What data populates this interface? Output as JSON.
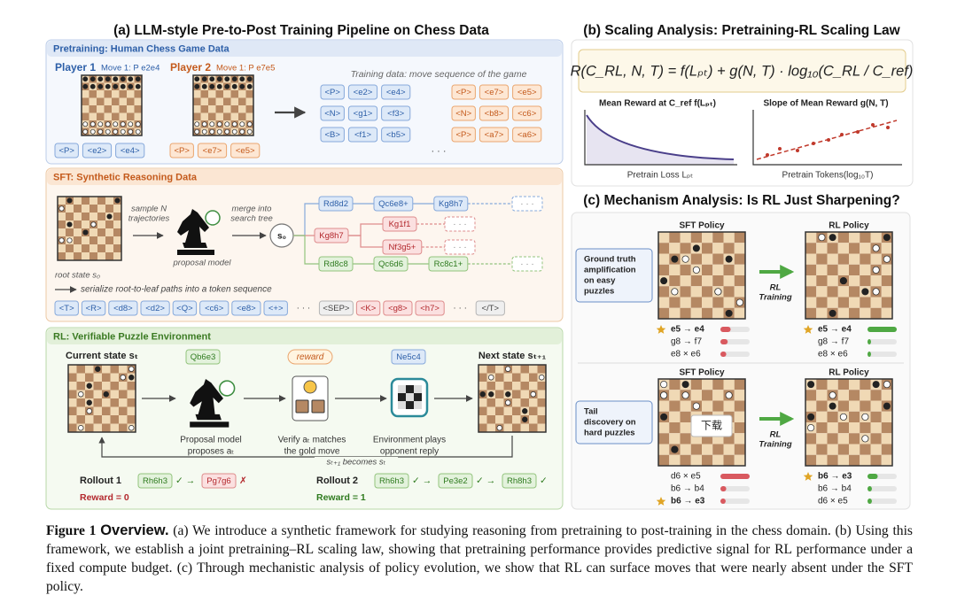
{
  "panel_a": {
    "title": "(a) LLM-style Pre-to-Post Training Pipeline on Chess Data",
    "pretraining": {
      "title": "Pretraining: Human Chess Game Data",
      "player1": "Player 1",
      "player1_move": "Move 1: P e2e4",
      "player2": "Player 2",
      "player2_move": "Move 1: P e7e5",
      "player1_tokens": [
        "<P>",
        "<e2>",
        "<e4>"
      ],
      "player2_tokens": [
        "<P>",
        "<e7>",
        "<e5>"
      ],
      "data_caption": "Training data: move sequence of the game",
      "token_rows": [
        [
          "<P>",
          "<e2>",
          "<e4>",
          "<P>",
          "<e7>",
          "<e5>"
        ],
        [
          "<N>",
          "<g1>",
          "<f3>",
          "<N>",
          "<b8>",
          "<c6>"
        ],
        [
          "<B>",
          "<f1>",
          "<b5>",
          "<P>",
          "<a7>",
          "<a6>"
        ]
      ],
      "ellipsis": "· · ·"
    },
    "sft": {
      "title": "SFT: Synthetic Reasoning Data",
      "sample": [
        "sample N",
        "trajectories"
      ],
      "merge": [
        "merge into",
        "search tree"
      ],
      "proposal": "proposal model",
      "root_state": "root state s₀",
      "root_node": "s₀",
      "tree": {
        "top": [
          "Rd8d2",
          "Qc6e8+",
          "Kg8h7"
        ],
        "middle": {
          "move": "Kg8h7",
          "children": [
            "Kg1f1",
            "Nf3g5+"
          ]
        },
        "bottom": [
          "Rd8c8",
          "Qc6d6",
          "Rc8c1+"
        ],
        "ellipsis": "· · ·"
      },
      "serialize": "serialize root-to-leaf paths into a token sequence",
      "sequence": [
        "<T>",
        "<R>",
        "<d8>",
        "<d2>",
        "<Q>",
        "<c6>",
        "<e8>",
        "<+>",
        "· · ·",
        "<SEP>",
        "<K>",
        "<g8>",
        "<h7>",
        "· · ·",
        "</T>"
      ]
    },
    "rl": {
      "title": "RL: Verifiable Puzzle Environment",
      "current_state": "Current state sₜ",
      "next_state": "Next state sₜ₊₁",
      "action": "Qb6e3",
      "reward": "reward",
      "reply": "Ne5c4",
      "proposal": [
        "Proposal model",
        "proposes aₜ"
      ],
      "verify": [
        "Verify aₜ matches",
        "the gold move"
      ],
      "environment": [
        "Environment plays",
        "opponent reply"
      ],
      "loop": "sₜ₊₁ becomes sₜ",
      "rollouts": [
        {
          "label": "Rollout 1",
          "moves": [
            "Rh6h3",
            "Pg7g6"
          ],
          "marks": [
            "✓ →",
            "✗"
          ],
          "reward": "Reward = 0"
        },
        {
          "label": "Rollout 2",
          "moves": [
            "Rh6h3",
            "Pe3e2",
            "Rh8h3"
          ],
          "marks": [
            "✓ →",
            "✓ →",
            "✓"
          ],
          "reward": "Reward = 1"
        }
      ]
    }
  },
  "panel_b": {
    "title": "(b) Scaling Analysis: Pretraining-RL Scaling Law",
    "formula": "R(C_RL, N, T) = f(Lₚₜ) + g(N, T) · log₁₀(C_RL / C_ref)",
    "plot1": {
      "title": "Mean Reward at C_ref f(Lₚₜ)",
      "xlabel": "Pretrain Loss Lₚₜ"
    },
    "plot2": {
      "title": "Slope of Mean Reward g(N, T)",
      "xlabel": "Pretrain Tokens(log₁₀T)"
    }
  },
  "panel_c": {
    "title": "(c) Mechanism Analysis: Is RL Just Sharpening?",
    "sft_color": "#d9595f",
    "rl_color": "#4fa843",
    "overlay": "下载",
    "rows": [
      {
        "label": [
          "Ground truth",
          "amplification",
          "on easy",
          "puzzles"
        ],
        "sft_title": "SFT Policy",
        "rl_title": "RL Policy",
        "arrow_label": [
          "RL",
          "Training"
        ],
        "sft_moves": [
          "e5 → e4",
          "g8 → f7",
          "e8 × e6"
        ],
        "sft_probs": [
          0.35,
          0.25,
          0.2
        ],
        "rl_moves": [
          "e5 → e4",
          "g8 → f7",
          "e8 × e6"
        ],
        "rl_probs": [
          1.0,
          0.12,
          0.12
        ]
      },
      {
        "label": [
          "Tail",
          "discovery on",
          "hard puzzles"
        ],
        "sft_title": "SFT Policy",
        "rl_title": "RL Policy",
        "arrow_label": [
          "RL",
          "Training"
        ],
        "sft_moves": [
          "d6 × e5",
          "b6 → b4",
          "b6 → e3"
        ],
        "sft_probs": [
          1.0,
          0.2,
          0.18
        ],
        "rl_moves": [
          "b6 → e3",
          "b6 → b4",
          "d6 × e5"
        ],
        "rl_probs": [
          0.35,
          0.15,
          0.15
        ]
      }
    ]
  },
  "caption": {
    "figure_label": "Figure 1",
    "heading": "Overview.",
    "text": "(a) We introduce a synthetic framework for studying reasoning from pretraining to post-training in the chess domain. (b) Using this framework, we establish a joint pretraining–RL scaling law, showing that pretraining performance provides predictive signal for RL performance under a fixed compute budget. (c) Through mechanistic analysis of policy evolution, we show that RL can surface moves that were nearly absent under the SFT policy."
  }
}
